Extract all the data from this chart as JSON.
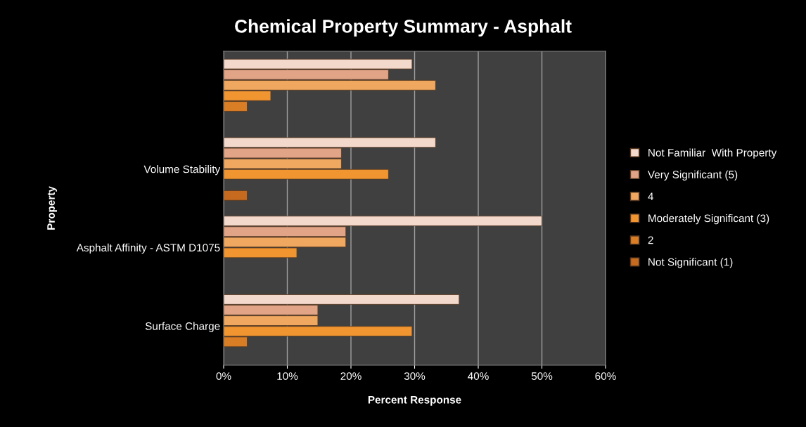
{
  "chart_data": {
    "type": "bar",
    "orientation": "horizontal",
    "title": "Chemical Property Summary - Asphalt",
    "xlabel": "Percent Response",
    "ylabel": "Property",
    "categories": [
      null,
      "Volume Stability",
      "Asphalt Affinity - ASTM D1075",
      "Surface Charge"
    ],
    "series": [
      {
        "name": "Not Familiar  With Property",
        "color": "#f3d8cc",
        "values": [
          29.6,
          33.3,
          50,
          37
        ]
      },
      {
        "name": "Very Significant (5)",
        "color": "#e2a487",
        "values": [
          25.9,
          18.5,
          19.2,
          14.8
        ]
      },
      {
        "name": "4",
        "color": "#f0a860",
        "values": [
          33.3,
          18.5,
          19.2,
          14.8
        ]
      },
      {
        "name": "Moderately Significant (3)",
        "color": "#f09530",
        "values": [
          7.4,
          25.9,
          11.5,
          29.6
        ]
      },
      {
        "name": "2",
        "color": "#d97e25",
        "values": [
          3.7,
          0,
          0,
          3.7
        ]
      },
      {
        "name": "Not Significant (1)",
        "color": "#c56a1e",
        "values": [
          0,
          3.7,
          0,
          0
        ]
      }
    ],
    "xlim": [
      0,
      60
    ],
    "xticks": [
      {
        "value": 0,
        "label": "0%"
      },
      {
        "value": 10,
        "label": "10%"
      },
      {
        "value": 20,
        "label": "20%"
      },
      {
        "value": 30,
        "label": "30%"
      },
      {
        "value": 40,
        "label": "40%"
      },
      {
        "value": 50,
        "label": "50%"
      },
      {
        "value": 60,
        "label": "60%"
      }
    ],
    "grid": "x",
    "legend": "right"
  }
}
